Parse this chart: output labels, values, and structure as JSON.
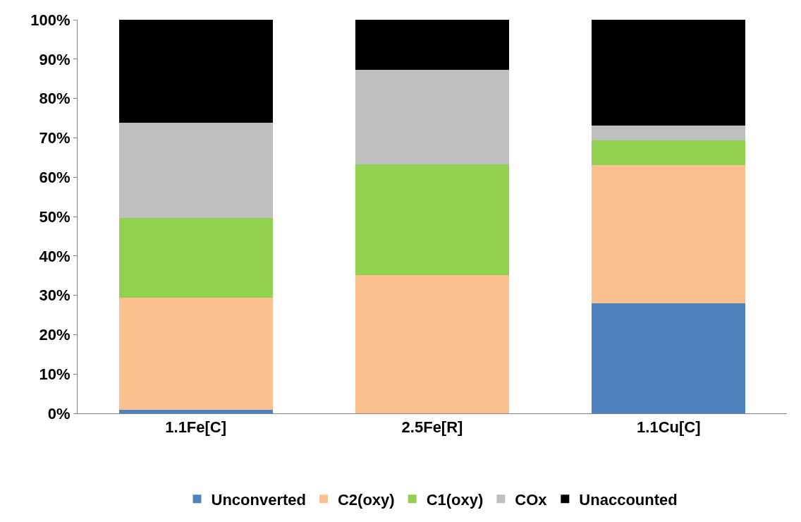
{
  "chart_data": {
    "type": "bar",
    "stacked": true,
    "categories": [
      "1.1Fe[C]",
      "2.5Fe[R]",
      "1.1Cu[C]"
    ],
    "series": [
      {
        "name": "Unconverted",
        "color": "#4f81bd",
        "values": [
          0.9,
          0,
          28.0
        ]
      },
      {
        "name": "C2(oxy)",
        "color": "#fac090",
        "values": [
          28.5,
          35.1,
          35.1
        ]
      },
      {
        "name": "C1(oxy)",
        "color": "#92d050",
        "values": [
          20.3,
          28.2,
          6.3
        ]
      },
      {
        "name": "COx",
        "color": "#bfbfbf",
        "values": [
          24.1,
          23.9,
          3.7
        ]
      },
      {
        "name": "Unaccounted",
        "color": "#000000",
        "values": [
          26.2,
          12.8,
          26.9
        ]
      }
    ],
    "ylim": [
      0,
      100
    ],
    "yticks": [
      {
        "value": 0,
        "label": "0%"
      },
      {
        "value": 10,
        "label": "10%"
      },
      {
        "value": 20,
        "label": "20%"
      },
      {
        "value": 30,
        "label": "30%"
      },
      {
        "value": 40,
        "label": "40%"
      },
      {
        "value": 50,
        "label": "50%"
      },
      {
        "value": 60,
        "label": "60%"
      },
      {
        "value": 70,
        "label": "70%"
      },
      {
        "value": 80,
        "label": "80%"
      },
      {
        "value": 90,
        "label": "90%"
      },
      {
        "value": 100,
        "label": "100%"
      }
    ],
    "legend": "bottom"
  }
}
